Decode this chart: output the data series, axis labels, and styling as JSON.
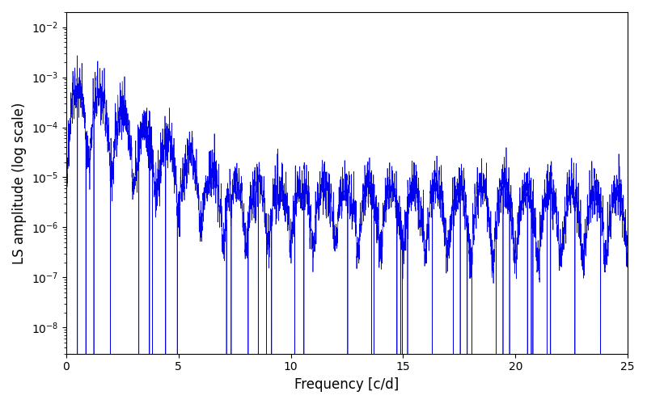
{
  "title": "",
  "xlabel": "Frequency [c/d]",
  "ylabel": "LS amplitude (log scale)",
  "line_color": "#0000ee",
  "line_width": 0.5,
  "xlim": [
    0,
    25
  ],
  "ylim_log": [
    3e-09,
    0.02
  ],
  "xticks": [
    0,
    5,
    10,
    15,
    20,
    25
  ],
  "figsize": [
    8.0,
    5.0
  ],
  "dpi": 100,
  "freq_max": 25,
  "n_points": 8000,
  "seed": 17
}
